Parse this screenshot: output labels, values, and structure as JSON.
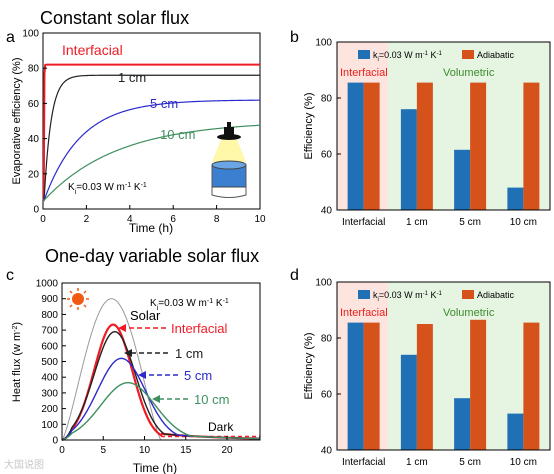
{
  "colors": {
    "interfacial": "#ee1c25",
    "one_cm": "#222222",
    "five_cm": "#2b2bcc",
    "ten_cm": "#3f8f5f",
    "solar": "#9a9a9a",
    "bar_blue": "#1f70b4",
    "bar_orange": "#d5531b",
    "shade_red": "#fde4de",
    "shade_green": "#e6f5e2",
    "label_red": "#e8221c",
    "label_green": "#3c8a2e",
    "sun": "#f05a14"
  },
  "panels": {
    "a_letter": "a",
    "b_letter": "b",
    "c_letter": "c",
    "d_letter": "d",
    "top_heading": "Constant solar flux",
    "bottom_heading": "One-day variable solar flux",
    "watermark": "大国说图"
  },
  "chart_data": [
    {
      "id": "a",
      "type": "line",
      "xlabel": "Time (h)",
      "ylabel": "Evaporative efficiency (%)",
      "xlim": [
        0,
        10
      ],
      "ylim": [
        0,
        100
      ],
      "xticks": [
        "0",
        "2",
        "4",
        "6",
        "8",
        "10"
      ],
      "yticks": [
        "0",
        "20",
        "40",
        "60",
        "80",
        "100"
      ],
      "annotation": "K_i=0.03 W m⁻¹ K⁻¹",
      "series": [
        {
          "name": "Interfacial",
          "plateau": 82,
          "tau": 0.01,
          "delay": 0.04,
          "start": 5
        },
        {
          "name": "1 cm",
          "plateau": 76,
          "tau": 0.32,
          "delay": 0.05,
          "start": 5
        },
        {
          "name": "5 cm",
          "plateau": 62,
          "tau": 1.7,
          "delay": 0.05,
          "start": 5
        },
        {
          "name": "10 cm",
          "plateau": 50,
          "tau": 3.4,
          "delay": 0.05,
          "start": 5
        }
      ]
    },
    {
      "id": "b",
      "type": "bar",
      "ylabel": "Efficiency (%)",
      "ylim": [
        40,
        100
      ],
      "yticks": [
        "40",
        "60",
        "80",
        "100"
      ],
      "categories": [
        "Interfacial",
        "1 cm",
        "5 cm",
        "10 cm"
      ],
      "legend_ki": "k_i=0.03 W m⁻¹ K⁻¹",
      "region_interfacial": "Interfacial",
      "region_volumetric": "Volumetric",
      "series": [
        {
          "name": "k_i=0.03 W m⁻¹ K⁻¹",
          "values": [
            85.5,
            76,
            61.5,
            48
          ]
        },
        {
          "name": "Adiabatic",
          "values": [
            85.5,
            85.5,
            85.5,
            85.5
          ]
        }
      ]
    },
    {
      "id": "c",
      "type": "line",
      "xlabel": "Time (h)",
      "ylabel": "Heat flux (w m⁻²)",
      "xlim": [
        0,
        24
      ],
      "ylim": [
        0,
        1000
      ],
      "xticks": [
        "0",
        "5",
        "10",
        "15",
        "20"
      ],
      "yticks": [
        "0",
        "100",
        "200",
        "300",
        "400",
        "500",
        "600",
        "700",
        "800",
        "900",
        "1000"
      ],
      "annotation": "K_i=0.03 W m⁻¹ K⁻¹",
      "text_solar": "Solar",
      "text_dark": "Dark",
      "series": [
        {
          "name": "Solar",
          "peak": 900,
          "peak_t": 6,
          "sigma": 2.4
        },
        {
          "name": "Interfacial",
          "peak": 735,
          "peak_t": 6.2,
          "sigma": 2.3
        },
        {
          "name": "1 cm",
          "peak": 690,
          "peak_t": 6.4,
          "sigma": 2.5
        },
        {
          "name": "5 cm",
          "peak": 520,
          "peak_t": 7.2,
          "sigma": 2.9
        },
        {
          "name": "10 cm",
          "peak": 365,
          "peak_t": 8.0,
          "sigma": 3.3
        }
      ]
    },
    {
      "id": "d",
      "type": "bar",
      "ylabel": "Efficiency (%)",
      "ylim": [
        40,
        100
      ],
      "yticks": [
        "40",
        "60",
        "80",
        "100"
      ],
      "categories": [
        "Interfacial",
        "1 cm",
        "5 cm",
        "10 cm"
      ],
      "legend_ki": "k_i=0.03 W m⁻¹ K⁻¹",
      "region_interfacial": "Interfacial",
      "region_volumetric": "Volumetric",
      "series": [
        {
          "name": "k_i=0.03 W m⁻¹ K⁻¹",
          "values": [
            85.5,
            74,
            58.5,
            53
          ]
        },
        {
          "name": "Adiabatic",
          "values": [
            85.5,
            85,
            86.5,
            85.5
          ]
        }
      ]
    }
  ]
}
